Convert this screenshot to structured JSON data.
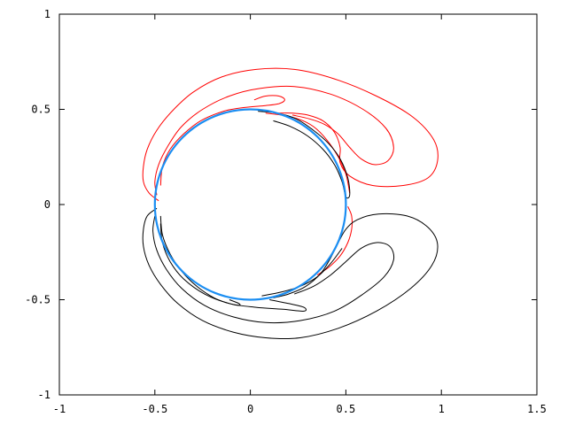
{
  "chart_data": {
    "type": "line",
    "title": "",
    "xlabel": "",
    "ylabel": "",
    "xlim": [
      -1,
      1.5
    ],
    "ylim": [
      -1,
      1
    ],
    "grid": false,
    "legend": "none",
    "x_ticks": [
      {
        "value": -1,
        "label": "-1"
      },
      {
        "value": -0.5,
        "label": "-0.5"
      },
      {
        "value": 0,
        "label": "0"
      },
      {
        "value": 0.5,
        "label": "0.5"
      },
      {
        "value": 1,
        "label": "1"
      },
      {
        "value": 1.5,
        "label": "1.5"
      }
    ],
    "y_ticks": [
      {
        "value": -1,
        "label": "-1"
      },
      {
        "value": -0.5,
        "label": "-0.5"
      },
      {
        "value": 0,
        "label": "0"
      },
      {
        "value": 0.5,
        "label": "0.5"
      },
      {
        "value": 1,
        "label": "1"
      }
    ],
    "circle": {
      "cx": 0,
      "cy": 0,
      "r": 0.5,
      "color": "#1b8ef2"
    },
    "series": [
      {
        "color": "#ff0000",
        "points": [
          [
            -0.48,
            0.02
          ],
          [
            -0.53,
            0.06
          ],
          [
            -0.56,
            0.12
          ],
          [
            -0.56,
            0.2
          ],
          [
            -0.54,
            0.29
          ],
          [
            -0.49,
            0.39
          ],
          [
            -0.41,
            0.49
          ],
          [
            -0.3,
            0.59
          ],
          [
            -0.15,
            0.67
          ],
          [
            0.03,
            0.71
          ],
          [
            0.23,
            0.71
          ],
          [
            0.44,
            0.66
          ],
          [
            0.66,
            0.57
          ],
          [
            0.85,
            0.46
          ],
          [
            0.96,
            0.34
          ],
          [
            0.98,
            0.23
          ],
          [
            0.93,
            0.14
          ],
          [
            0.8,
            0.1
          ],
          [
            0.64,
            0.1
          ],
          [
            0.52,
            0.15
          ],
          [
            0.47,
            0.22
          ],
          [
            0.47,
            0.3
          ],
          [
            0.44,
            0.38
          ],
          [
            0.38,
            0.44
          ],
          [
            0.3,
            0.47
          ],
          [
            0.22,
            0.48
          ],
          [
            0.14,
            0.48
          ]
        ]
      },
      {
        "color": "#ff0000",
        "points": [
          [
            -0.49,
            0.05
          ],
          [
            -0.5,
            0.12
          ],
          [
            -0.48,
            0.21
          ],
          [
            -0.43,
            0.31
          ],
          [
            -0.36,
            0.41
          ],
          [
            -0.25,
            0.5
          ],
          [
            -0.11,
            0.57
          ],
          [
            0.05,
            0.61
          ],
          [
            0.23,
            0.62
          ],
          [
            0.42,
            0.58
          ],
          [
            0.59,
            0.5
          ],
          [
            0.71,
            0.4
          ],
          [
            0.75,
            0.3
          ],
          [
            0.72,
            0.23
          ],
          [
            0.65,
            0.21
          ],
          [
            0.58,
            0.24
          ],
          [
            0.52,
            0.3
          ],
          [
            0.46,
            0.37
          ],
          [
            0.39,
            0.42
          ],
          [
            0.31,
            0.45
          ],
          [
            0.22,
            0.47
          ]
        ]
      },
      {
        "color": "#ff0000",
        "points": [
          [
            -0.47,
            0.1
          ],
          [
            -0.46,
            0.2
          ],
          [
            -0.42,
            0.29
          ],
          [
            -0.35,
            0.37
          ],
          [
            -0.26,
            0.44
          ],
          [
            -0.14,
            0.49
          ],
          [
            -0.03,
            0.51
          ],
          [
            0.08,
            0.52
          ],
          [
            0.15,
            0.53
          ],
          [
            0.18,
            0.55
          ],
          [
            0.15,
            0.57
          ],
          [
            0.08,
            0.57
          ],
          [
            0.02,
            0.55
          ]
        ]
      },
      {
        "color": "#ff0000",
        "points": [
          [
            0.08,
            0.48
          ],
          [
            0.16,
            0.47
          ],
          [
            0.25,
            0.45
          ],
          [
            0.33,
            0.41
          ],
          [
            0.4,
            0.34
          ],
          [
            0.46,
            0.25
          ],
          [
            0.5,
            0.16
          ],
          [
            0.52,
            0.06
          ]
        ]
      },
      {
        "color": "#ff0000",
        "points": [
          [
            0.51,
            -0.01
          ],
          [
            0.53,
            -0.06
          ],
          [
            0.53,
            -0.13
          ],
          [
            0.51,
            -0.2
          ],
          [
            0.47,
            -0.27
          ],
          [
            0.41,
            -0.33
          ],
          [
            0.35,
            -0.37
          ]
        ]
      },
      {
        "color": "#000000",
        "points": [
          [
            -0.49,
            -0.02
          ],
          [
            -0.54,
            -0.06
          ],
          [
            -0.56,
            -0.13
          ],
          [
            -0.56,
            -0.22
          ],
          [
            -0.53,
            -0.32
          ],
          [
            -0.47,
            -0.42
          ],
          [
            -0.38,
            -0.52
          ],
          [
            -0.25,
            -0.61
          ],
          [
            -0.09,
            -0.67
          ],
          [
            0.08,
            -0.7
          ],
          [
            0.26,
            -0.7
          ],
          [
            0.46,
            -0.65
          ],
          [
            0.66,
            -0.56
          ],
          [
            0.84,
            -0.44
          ],
          [
            0.95,
            -0.32
          ],
          [
            0.98,
            -0.21
          ],
          [
            0.93,
            -0.12
          ],
          [
            0.82,
            -0.06
          ],
          [
            0.67,
            -0.05
          ],
          [
            0.56,
            -0.08
          ],
          [
            0.5,
            -0.13
          ],
          [
            0.46,
            -0.2
          ],
          [
            0.42,
            -0.28
          ],
          [
            0.37,
            -0.36
          ],
          [
            0.29,
            -0.43
          ],
          [
            0.2,
            -0.47
          ],
          [
            0.12,
            -0.49
          ]
        ]
      },
      {
        "color": "#000000",
        "points": [
          [
            -0.5,
            -0.06
          ],
          [
            -0.51,
            -0.14
          ],
          [
            -0.49,
            -0.24
          ],
          [
            -0.44,
            -0.34
          ],
          [
            -0.36,
            -0.44
          ],
          [
            -0.24,
            -0.53
          ],
          [
            -0.09,
            -0.59
          ],
          [
            0.08,
            -0.62
          ],
          [
            0.26,
            -0.61
          ],
          [
            0.44,
            -0.56
          ],
          [
            0.59,
            -0.47
          ],
          [
            0.7,
            -0.38
          ],
          [
            0.75,
            -0.29
          ],
          [
            0.73,
            -0.22
          ],
          [
            0.66,
            -0.2
          ],
          [
            0.58,
            -0.23
          ],
          [
            0.5,
            -0.3
          ],
          [
            0.42,
            -0.37
          ],
          [
            0.33,
            -0.43
          ],
          [
            0.23,
            -0.47
          ]
        ]
      },
      {
        "color": "#000000",
        "points": [
          [
            -0.47,
            -0.1
          ],
          [
            -0.46,
            -0.2
          ],
          [
            -0.42,
            -0.3
          ],
          [
            -0.35,
            -0.39
          ],
          [
            -0.24,
            -0.47
          ],
          [
            -0.11,
            -0.52
          ],
          [
            0.03,
            -0.54
          ],
          [
            0.17,
            -0.55
          ],
          [
            0.28,
            -0.56
          ],
          [
            0.28,
            -0.54
          ],
          [
            0.2,
            -0.52
          ],
          [
            0.1,
            -0.5
          ]
        ]
      },
      {
        "color": "#000000",
        "points": [
          [
            -0.47,
            -0.06
          ],
          [
            -0.46,
            -0.16
          ],
          [
            -0.42,
            -0.26
          ],
          [
            -0.36,
            -0.35
          ],
          [
            -0.28,
            -0.43
          ],
          [
            -0.19,
            -0.49
          ],
          [
            -0.11,
            -0.52
          ],
          [
            -0.06,
            -0.53
          ],
          [
            -0.06,
            -0.52
          ],
          [
            -0.11,
            -0.5
          ]
        ]
      },
      {
        "color": "#000000",
        "points": [
          [
            0.06,
            -0.48
          ],
          [
            0.16,
            -0.46
          ],
          [
            0.26,
            -0.43
          ],
          [
            0.35,
            -0.38
          ],
          [
            0.42,
            -0.31
          ],
          [
            0.48,
            -0.23
          ]
        ]
      },
      {
        "color": "#000000",
        "points": [
          [
            0.04,
            0.49
          ],
          [
            0.14,
            0.48
          ],
          [
            0.24,
            0.45
          ],
          [
            0.33,
            0.39
          ],
          [
            0.41,
            0.32
          ],
          [
            0.47,
            0.24
          ],
          [
            0.51,
            0.14
          ],
          [
            0.52,
            0.05
          ],
          [
            0.5,
            0.04
          ],
          [
            0.48,
            0.12
          ],
          [
            0.44,
            0.21
          ],
          [
            0.38,
            0.29
          ],
          [
            0.3,
            0.36
          ],
          [
            0.21,
            0.41
          ],
          [
            0.12,
            0.44
          ]
        ]
      }
    ]
  }
}
